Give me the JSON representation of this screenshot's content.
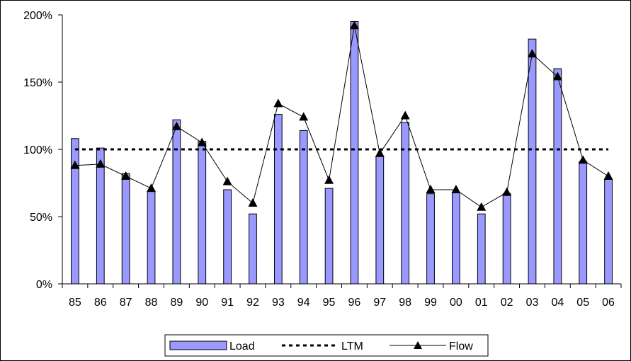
{
  "chart_data": {
    "type": "bar",
    "title": "",
    "xlabel": "",
    "ylabel": "",
    "categories": [
      "85",
      "86",
      "87",
      "88",
      "89",
      "90",
      "91",
      "92",
      "93",
      "94",
      "95",
      "96",
      "97",
      "98",
      "99",
      "00",
      "01",
      "02",
      "03",
      "04",
      "05",
      "06"
    ],
    "ylim": [
      0,
      200
    ],
    "y_ticks": [
      0,
      50,
      100,
      150,
      200
    ],
    "y_tick_labels": [
      "0%",
      "50%",
      "100%",
      "150%",
      "200%"
    ],
    "grid": false,
    "legend_position": "bottom",
    "series": [
      {
        "name": "Load",
        "type": "bar",
        "color": "#9999ff",
        "values": [
          108,
          101,
          82,
          69,
          122,
          106,
          70,
          52,
          126,
          114,
          71,
          195,
          95,
          120,
          67,
          68,
          52,
          67,
          182,
          160,
          91,
          78
        ]
      },
      {
        "name": "LTM",
        "type": "line",
        "style": "dotted",
        "color": "#000000",
        "values": [
          100,
          100,
          100,
          100,
          100,
          100,
          100,
          100,
          100,
          100,
          100,
          100,
          100,
          100,
          100,
          100,
          100,
          100,
          100,
          100,
          100,
          100
        ]
      },
      {
        "name": "Flow",
        "type": "line",
        "marker": "triangle",
        "color": "#000000",
        "values": [
          88,
          89,
          80,
          71,
          117,
          105,
          76,
          60,
          134,
          124,
          77,
          192,
          97,
          125,
          70,
          70,
          57,
          68,
          171,
          154,
          92,
          80
        ]
      }
    ]
  }
}
